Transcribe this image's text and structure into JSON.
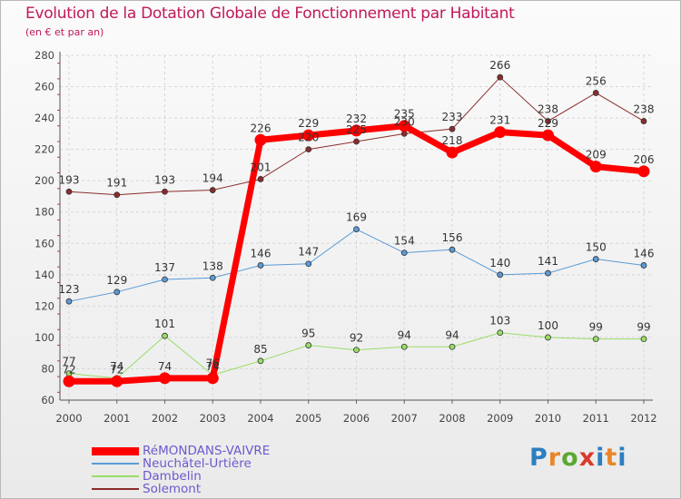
{
  "title": "Evolution de la Dotation Globale de Fonctionnement par Habitant",
  "subtitle": "(en € et par an)",
  "logo": {
    "text": "Proxiti",
    "letters": [
      "P",
      "r",
      "o",
      "x",
      "i",
      "t",
      "i"
    ]
  },
  "chart_data": {
    "type": "line",
    "x": [
      "2000",
      "2001",
      "2002",
      "2003",
      "2004",
      "2005",
      "2006",
      "2007",
      "2008",
      "2009",
      "2010",
      "2011",
      "2012"
    ],
    "ylim": [
      60,
      280
    ],
    "yticks": [
      60,
      80,
      100,
      120,
      140,
      160,
      180,
      200,
      220,
      240,
      260,
      280
    ],
    "grid": true,
    "legend_position": "bottom-left",
    "series": [
      {
        "name": "RéMONDANS-VAIVRE",
        "color": "#ff0000",
        "values": [
          72,
          72,
          74,
          74,
          226,
          229,
          232,
          235,
          218,
          231,
          229,
          209,
          206
        ],
        "labels": [
          "72",
          "72",
          "74",
          "74",
          "226",
          "229",
          "232",
          "235",
          "218",
          "231",
          "229",
          "209",
          "206"
        ]
      },
      {
        "name": "Neuchâtel-Urtière",
        "color": "#5a9bd5",
        "values": [
          123,
          129,
          137,
          138,
          146,
          147,
          169,
          154,
          156,
          140,
          141,
          150,
          146
        ],
        "labels": [
          "123",
          "129",
          "137",
          "138",
          "146",
          "147",
          "169",
          "154",
          "156",
          "140",
          "141",
          "150",
          "146"
        ]
      },
      {
        "name": "Dambelin",
        "color": "#99dd66",
        "values": [
          77,
          74,
          101,
          76,
          85,
          95,
          92,
          94,
          94,
          103,
          100,
          99,
          99
        ],
        "labels": [
          "77",
          "74",
          "101",
          "76",
          "85",
          "95",
          "92",
          "94",
          "94",
          "103",
          "100",
          "99",
          "99"
        ]
      },
      {
        "name": "Solemont",
        "color": "#8b2c2c",
        "values": [
          193,
          191,
          193,
          194,
          201,
          220,
          225,
          230,
          233,
          266,
          238,
          256,
          238
        ],
        "labels": [
          "193",
          "191",
          "193",
          "194",
          "201",
          "220",
          "225",
          "230",
          "233",
          "266",
          "238",
          "256",
          "238"
        ]
      }
    ]
  }
}
